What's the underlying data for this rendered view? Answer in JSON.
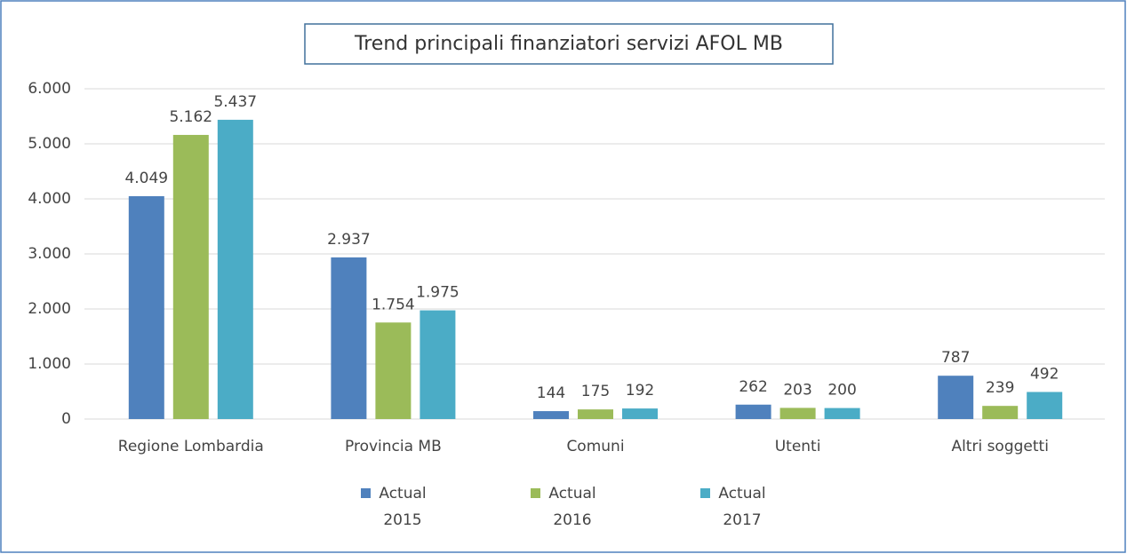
{
  "chart_data": {
    "type": "bar",
    "title": "Trend principali finanziatori servizi AFOL MB",
    "categories": [
      "Regione Lombardia",
      "Provincia MB",
      "Comuni",
      "Utenti",
      "Altri soggetti"
    ],
    "series": [
      {
        "name": "Actual 2015",
        "color": "#4f81bd",
        "values": [
          4049,
          2937,
          144,
          262,
          787
        ],
        "value_labels": [
          "4.049",
          "2.937",
          "144",
          "262",
          "787"
        ]
      },
      {
        "name": "Actual 2016",
        "color": "#9bbb59",
        "values": [
          5162,
          1754,
          175,
          203,
          239
        ],
        "value_labels": [
          "5.162",
          "1.754",
          "175",
          "203",
          "239"
        ]
      },
      {
        "name": "Actual 2017",
        "color": "#4bacc6",
        "values": [
          5437,
          1975,
          192,
          200,
          492
        ],
        "value_labels": [
          "5.437",
          "1.975",
          "192",
          "200",
          "492"
        ]
      }
    ],
    "ylim": [
      0,
      6000
    ],
    "yticks": [
      0,
      {
        "value": 1000,
        "label": "1.000"
      },
      {
        "value": 2000,
        "label": "2.000"
      },
      {
        "value": 3000,
        "label": "3.000"
      },
      {
        "value": 4000,
        "label": "4.000"
      },
      {
        "value": 5000,
        "label": "5.000"
      },
      {
        "value": 6000,
        "label": "6.000"
      }
    ],
    "grid": true,
    "legend": "bottom"
  }
}
